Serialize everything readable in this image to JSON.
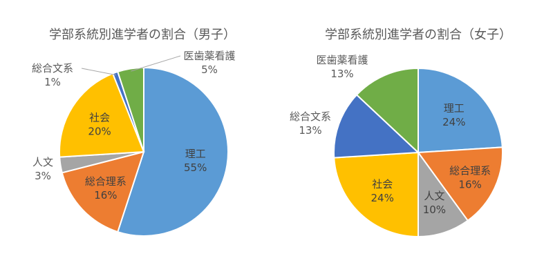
{
  "chart_data": [
    {
      "type": "pie",
      "title": "学部系統別進学者の割合（男子）",
      "categories": [
        "理工",
        "総合理系",
        "人文",
        "社会",
        "総合文系",
        "医歯薬看護"
      ],
      "values": [
        55,
        16,
        3,
        20,
        1,
        5
      ],
      "value_labels": [
        "55%",
        "16%",
        "3%",
        "20%",
        "1%",
        "5%"
      ],
      "colors": [
        "#5B9BD5",
        "#ED7D31",
        "#A5A5A5",
        "#FFC000",
        "#4472C4",
        "#70AD47"
      ]
    },
    {
      "type": "pie",
      "title": "学部系統別進学者の割合（女子）",
      "categories": [
        "理工",
        "総合理系",
        "人文",
        "社会",
        "総合文系",
        "医歯薬看護"
      ],
      "values": [
        24,
        16,
        10,
        24,
        13,
        13
      ],
      "value_labels": [
        "24%",
        "16%",
        "10%",
        "24%",
        "13%",
        "13%"
      ],
      "colors": [
        "#5B9BD5",
        "#ED7D31",
        "#A5A5A5",
        "#FFC000",
        "#4472C4",
        "#70AD47"
      ]
    }
  ]
}
